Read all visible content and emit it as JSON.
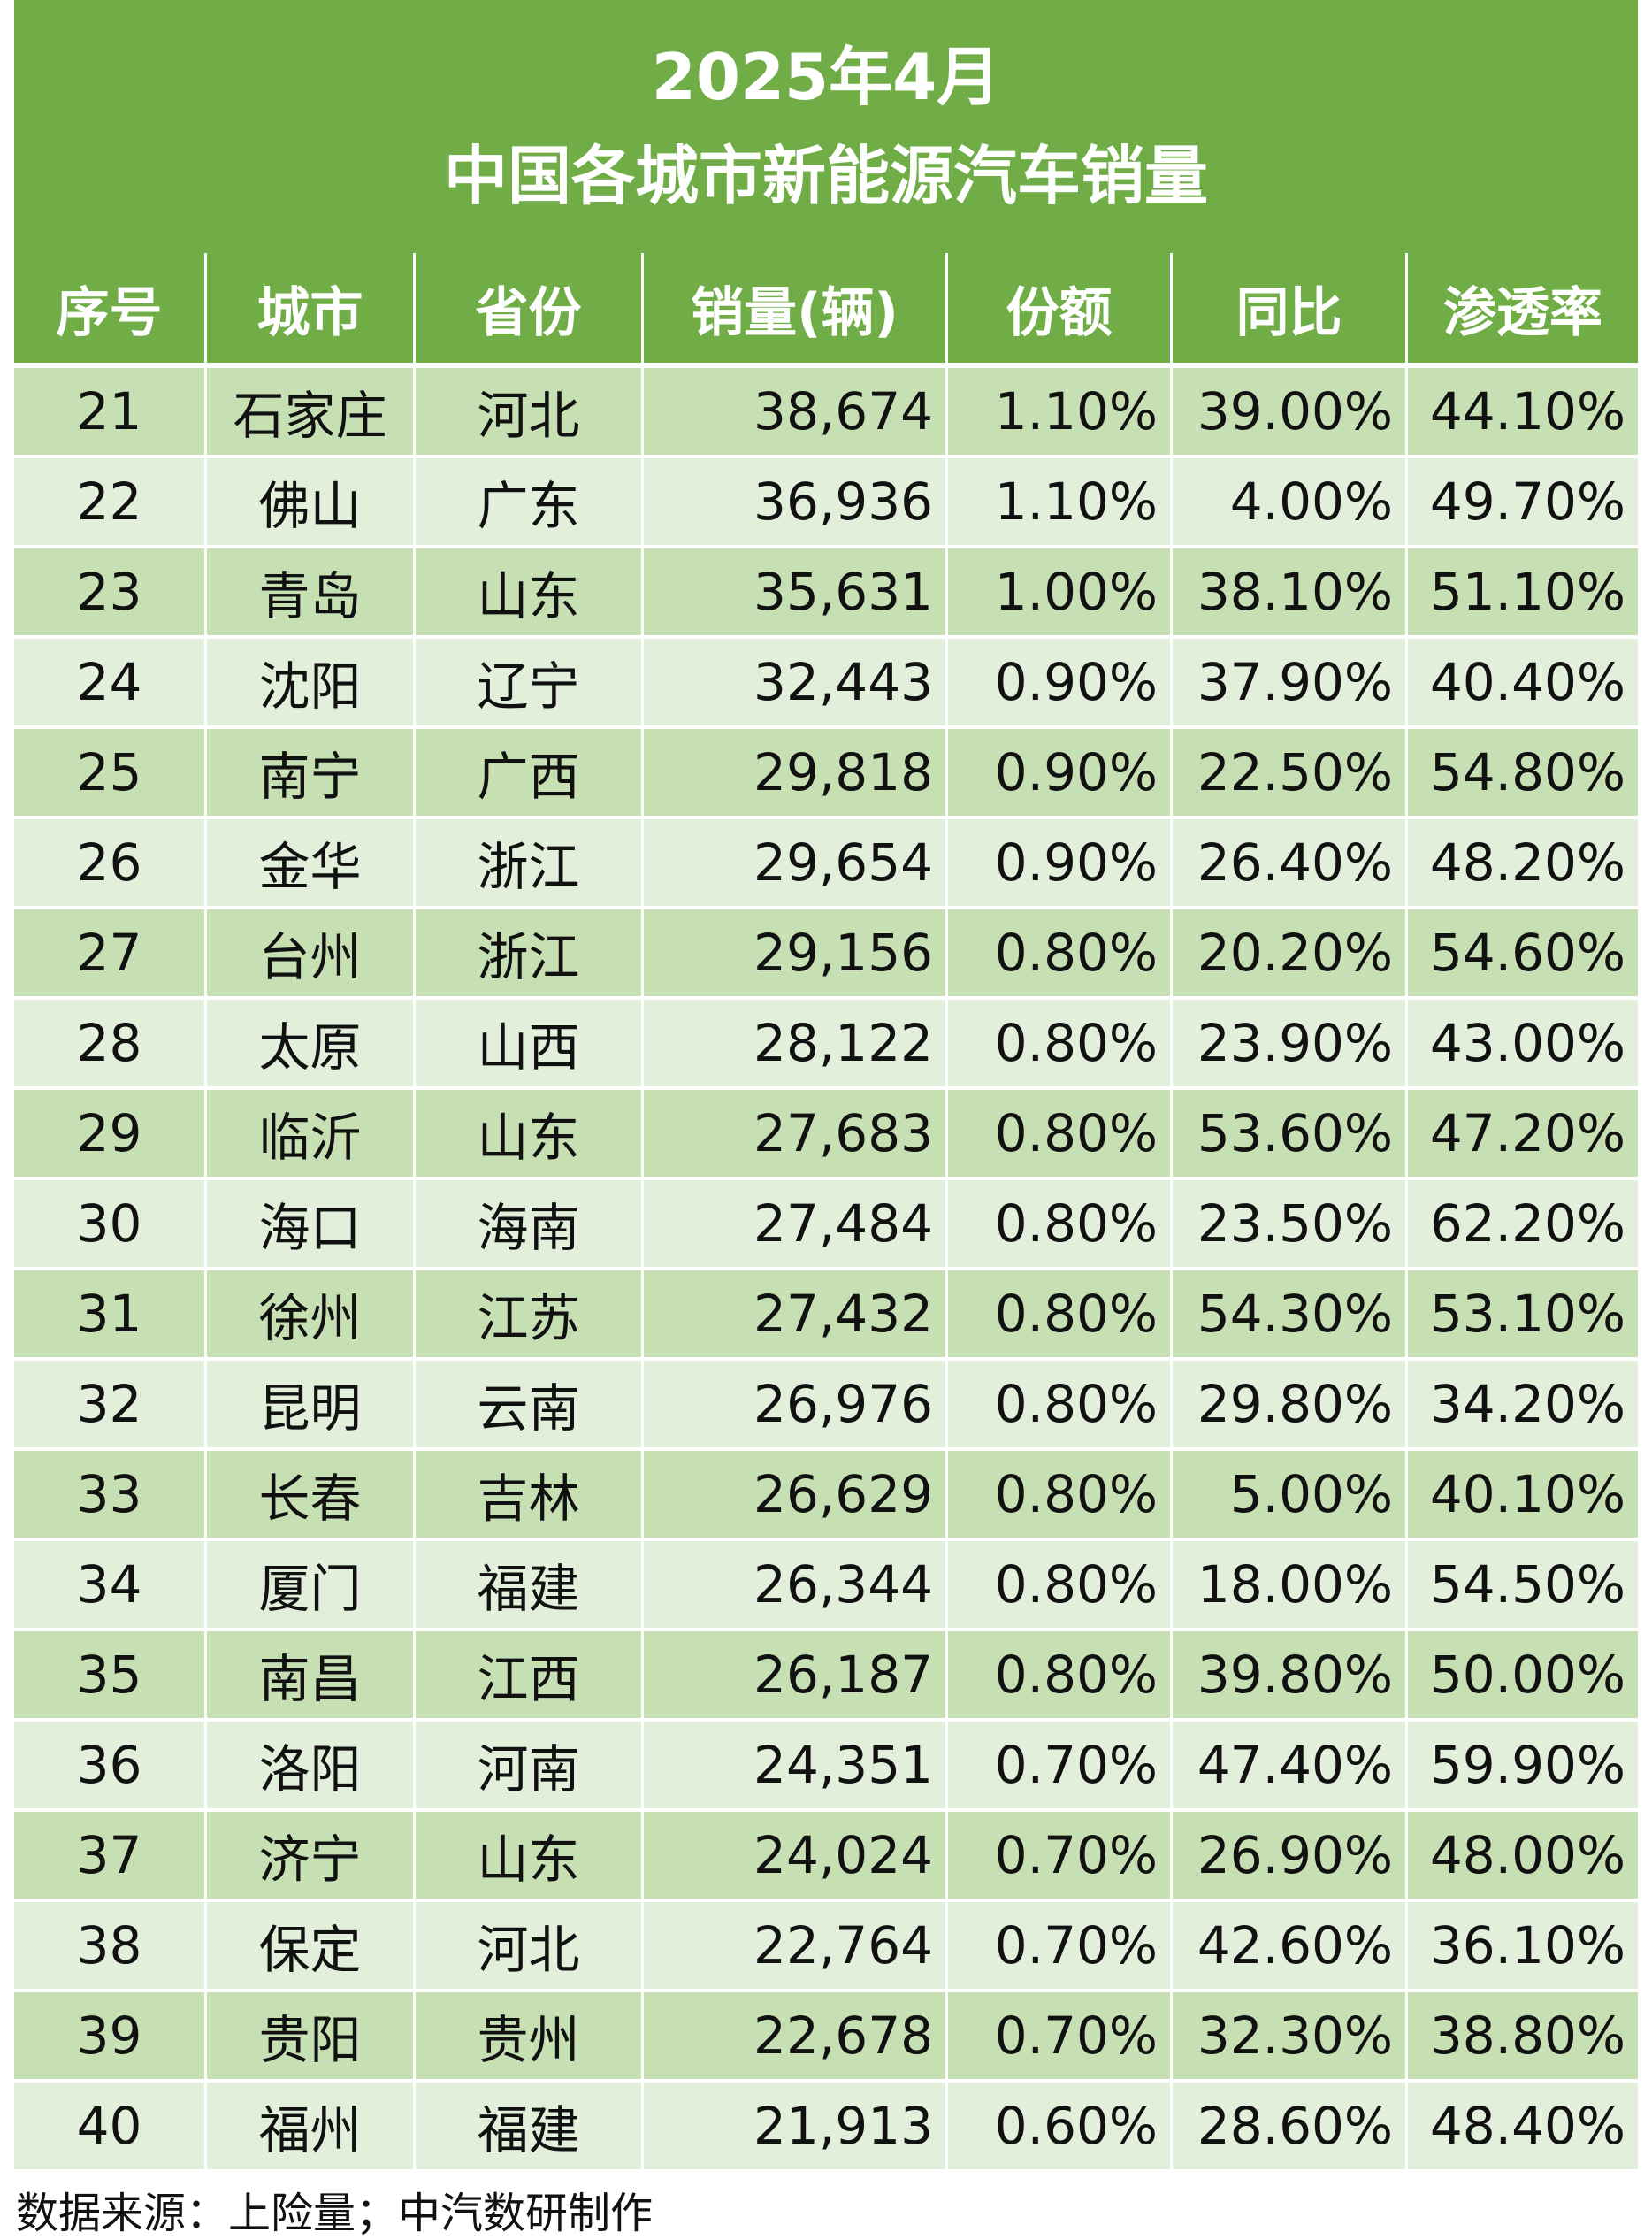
{
  "title": {
    "line1": "2025年4月",
    "line2": "中国各城市新能源汽车销量"
  },
  "table": {
    "headers": [
      "序号",
      "城市",
      "省份",
      "销量(辆)",
      "份额",
      "同比",
      "渗透率"
    ],
    "rows": [
      [
        "21",
        "石家庄",
        "河北",
        "38,674",
        "1.10%",
        "39.00%",
        "44.10%"
      ],
      [
        "22",
        "佛山",
        "广东",
        "36,936",
        "1.10%",
        "4.00%",
        "49.70%"
      ],
      [
        "23",
        "青岛",
        "山东",
        "35,631",
        "1.00%",
        "38.10%",
        "51.10%"
      ],
      [
        "24",
        "沈阳",
        "辽宁",
        "32,443",
        "0.90%",
        "37.90%",
        "40.40%"
      ],
      [
        "25",
        "南宁",
        "广西",
        "29,818",
        "0.90%",
        "22.50%",
        "54.80%"
      ],
      [
        "26",
        "金华",
        "浙江",
        "29,654",
        "0.90%",
        "26.40%",
        "48.20%"
      ],
      [
        "27",
        "台州",
        "浙江",
        "29,156",
        "0.80%",
        "20.20%",
        "54.60%"
      ],
      [
        "28",
        "太原",
        "山西",
        "28,122",
        "0.80%",
        "23.90%",
        "43.00%"
      ],
      [
        "29",
        "临沂",
        "山东",
        "27,683",
        "0.80%",
        "53.60%",
        "47.20%"
      ],
      [
        "30",
        "海口",
        "海南",
        "27,484",
        "0.80%",
        "23.50%",
        "62.20%"
      ],
      [
        "31",
        "徐州",
        "江苏",
        "27,432",
        "0.80%",
        "54.30%",
        "53.10%"
      ],
      [
        "32",
        "昆明",
        "云南",
        "26,976",
        "0.80%",
        "29.80%",
        "34.20%"
      ],
      [
        "33",
        "长春",
        "吉林",
        "26,629",
        "0.80%",
        "5.00%",
        "40.10%"
      ],
      [
        "34",
        "厦门",
        "福建",
        "26,344",
        "0.80%",
        "18.00%",
        "54.50%"
      ],
      [
        "35",
        "南昌",
        "江西",
        "26,187",
        "0.80%",
        "39.80%",
        "50.00%"
      ],
      [
        "36",
        "洛阳",
        "河南",
        "24,351",
        "0.70%",
        "47.40%",
        "59.90%"
      ],
      [
        "37",
        "济宁",
        "山东",
        "24,024",
        "0.70%",
        "26.90%",
        "48.00%"
      ],
      [
        "38",
        "保定",
        "河北",
        "22,764",
        "0.70%",
        "42.60%",
        "36.10%"
      ],
      [
        "39",
        "贵阳",
        "贵州",
        "22,678",
        "0.70%",
        "32.30%",
        "38.80%"
      ],
      [
        "40",
        "福州",
        "福建",
        "21,913",
        "0.60%",
        "28.60%",
        "48.40%"
      ]
    ]
  },
  "source": "数据来源：上险量；中汽数研制作",
  "colors": {
    "header_green": "#70ad47",
    "row_dark": "#c6e0b4",
    "row_light": "#e2efda"
  }
}
